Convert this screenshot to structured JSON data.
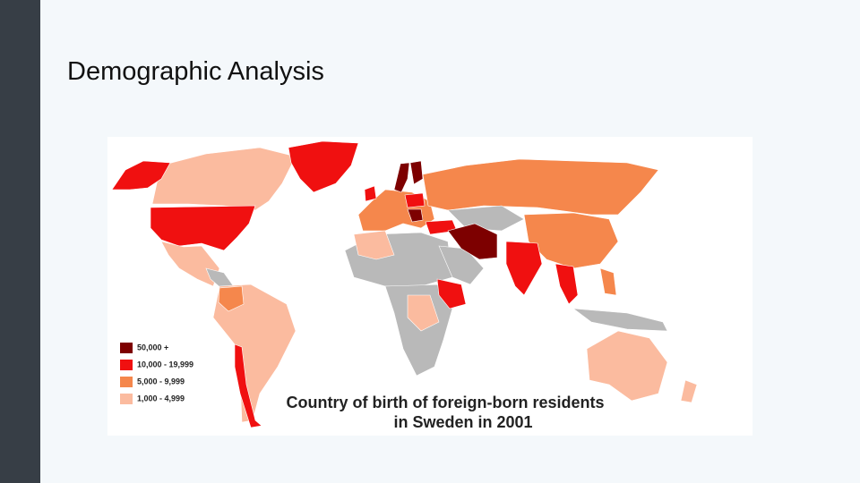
{
  "slide": {
    "title": "Demographic Analysis"
  },
  "map": {
    "title_lines": [
      "Country of birth of foreign-born residents",
      "in Sweden in 2001"
    ],
    "legend": [
      {
        "label": "50,000 +",
        "color": "#7d0000"
      },
      {
        "label": "10,000 - 19,999",
        "color": "#f01010"
      },
      {
        "label": "5,000 - 9,999",
        "color": "#f5874c"
      },
      {
        "label": "1,000 - 4,999",
        "color": "#fbbb9f"
      }
    ]
  }
}
